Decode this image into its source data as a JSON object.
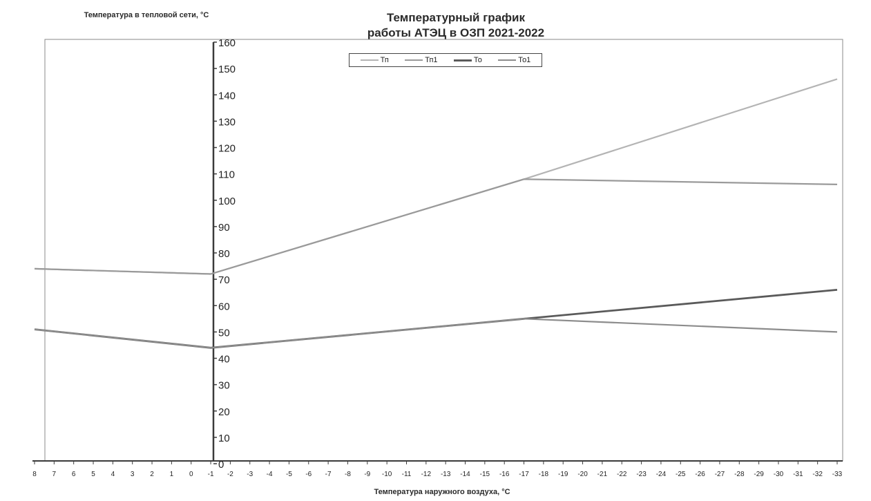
{
  "colors": {
    "background": "#ffffff",
    "axis": "#3a3a3a",
    "frame": "#8a8a8a",
    "series_Tp": "#b4b4b4",
    "series_Tp1": "#9a9a9a",
    "series_To": "#5a5a5a",
    "series_To1": "#8c8c8c"
  },
  "chart_data": {
    "type": "line",
    "title": "Температурный график работы АТЭЦ в ОЗП 2021-2022",
    "title_lines": [
      "Температурный график",
      "работы АТЭЦ в ОЗП 2021-2022"
    ],
    "ylabel": "Температура в тепловой сети, °С",
    "xlabel": "Температура наружного воздуха, °С",
    "xlim": [
      8,
      -33
    ],
    "ylim": [
      0,
      160
    ],
    "x_ticks": [
      "8",
      "7",
      "6",
      "5",
      "4",
      "3",
      "2",
      "1",
      "0",
      "-1",
      "-2",
      "-3",
      "-4",
      "-5",
      "-6",
      "-7",
      "-8",
      "-9",
      "-10",
      "-11",
      "-12",
      "-13",
      "-14",
      "-15",
      "-16",
      "-17",
      "-18",
      "-19",
      "-20",
      "-21",
      "-22",
      "-23",
      "-24",
      "-25",
      "-26",
      "-27",
      "-28",
      "-29",
      "-30",
      "-31",
      "-32",
      "-33"
    ],
    "y_ticks": [
      "0",
      "10",
      "20",
      "30",
      "40",
      "50",
      "60",
      "70",
      "80",
      "90",
      "100",
      "110",
      "120",
      "130",
      "140",
      "150",
      "160"
    ],
    "legend_position": "top-center",
    "grid": false,
    "series": [
      {
        "name": "Тп",
        "color": "#b4b4b4",
        "points": [
          [
            8,
            74
          ],
          [
            -1,
            72
          ],
          [
            -17,
            108
          ],
          [
            -33,
            146
          ]
        ]
      },
      {
        "name": "Тп1",
        "color": "#9a9a9a",
        "points": [
          [
            8,
            74
          ],
          [
            -1,
            72
          ],
          [
            -17,
            108
          ],
          [
            -33,
            106
          ]
        ]
      },
      {
        "name": "То",
        "color": "#5a5a5a",
        "points": [
          [
            8,
            51
          ],
          [
            -1,
            44
          ],
          [
            -17,
            55
          ],
          [
            -33,
            66
          ]
        ]
      },
      {
        "name": "То1",
        "color": "#8c8c8c",
        "points": [
          [
            8,
            51
          ],
          [
            -1,
            44
          ],
          [
            -17,
            55
          ],
          [
            -33,
            50
          ]
        ]
      }
    ]
  }
}
